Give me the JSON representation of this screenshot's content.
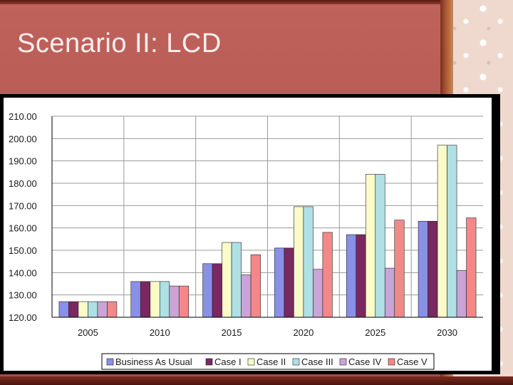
{
  "slide": {
    "title": "Scenario II: LCD"
  },
  "colors": {
    "background": "#b85a52",
    "title_text": "#f7eeee",
    "plot_background": "#ffffff"
  },
  "chart_data": {
    "type": "bar",
    "title": "",
    "xlabel": "",
    "ylabel": "",
    "categories": [
      "2005",
      "2010",
      "2015",
      "2020",
      "2025",
      "2030"
    ],
    "ylim": [
      120,
      210
    ],
    "y_ticks": [
      "120.00",
      "130.00",
      "140.00",
      "150.00",
      "160.00",
      "170.00",
      "180.00",
      "190.00",
      "200.00",
      "210.00"
    ],
    "grid": true,
    "legend_position": "bottom",
    "series": [
      {
        "name": "Business As Usual",
        "color": "#8a8fe8",
        "values": [
          127,
          136,
          144,
          151,
          157,
          163
        ]
      },
      {
        "name": "Case I",
        "color": "#7a2860",
        "values": [
          127,
          136,
          144,
          151,
          157,
          163
        ]
      },
      {
        "name": "Case II",
        "color": "#fbfbc8",
        "values": [
          127,
          136,
          153.5,
          169.5,
          184,
          197
        ]
      },
      {
        "name": "Case III",
        "color": "#aee0e6",
        "values": [
          127,
          136,
          153.5,
          169.5,
          184,
          197
        ]
      },
      {
        "name": "Case IV",
        "color": "#c8a4d8",
        "values": [
          127,
          134,
          139,
          141.5,
          142,
          141
        ]
      },
      {
        "name": "Case V",
        "color": "#f48888",
        "values": [
          127,
          134,
          148,
          158,
          163.5,
          164.5
        ]
      }
    ]
  }
}
